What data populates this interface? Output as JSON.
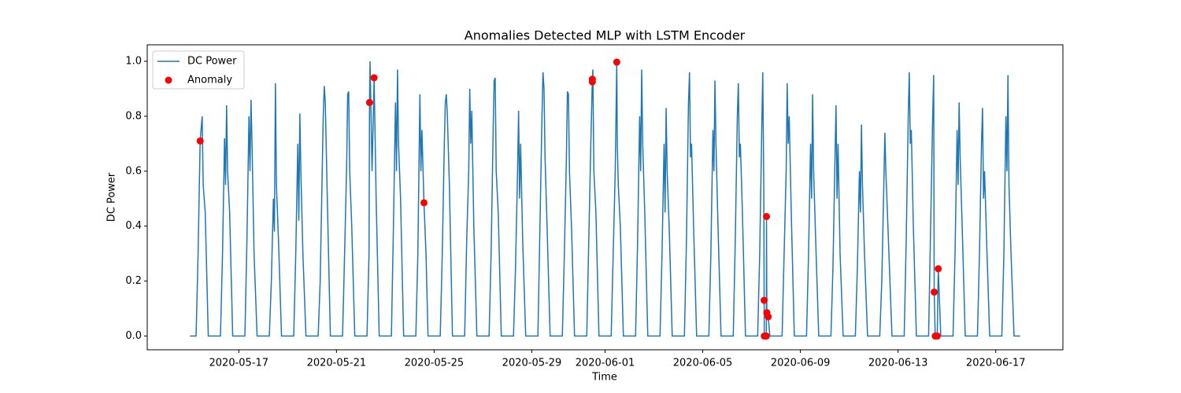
{
  "chart_data": {
    "type": "line",
    "title": "Anomalies Detected MLP with LSTM Encoder",
    "xlabel": "Time",
    "ylabel": "DC Power",
    "xlim": [
      "2020-05-13 06:00",
      "2020-06-19 18:00"
    ],
    "ylim": [
      -0.05,
      1.06
    ],
    "xticks": [
      "2020-05-17",
      "2020-05-21",
      "2020-05-25",
      "2020-05-29",
      "2020-06-01",
      "2020-06-05",
      "2020-06-09",
      "2020-06-13",
      "2020-06-17"
    ],
    "yticks": [
      {
        "value": 0,
        "label": "0.0"
      },
      {
        "value": 0.2,
        "label": "0.2"
      },
      {
        "value": 0.4,
        "label": "0.4"
      },
      {
        "value": 0.6,
        "label": "0.6"
      },
      {
        "value": 0.8,
        "label": "0.8"
      },
      {
        "value": 1,
        "label": "1.0"
      }
    ],
    "legend": "upper left",
    "series": [
      {
        "name": "DC Power",
        "type": "line",
        "color": "#1f77b4",
        "x": [
          "2020-05-15 00:00",
          "2020-05-15 06:00",
          "2020-05-15 08:00",
          "2020-05-15 10:00",
          "2020-05-15 12:00",
          "2020-05-15 13:00",
          "2020-05-15 15:00",
          "2020-05-15 18:00",
          "2020-05-16 06:00",
          "2020-05-16 08:00",
          "2020-05-16 10:00",
          "2020-05-16 11:00",
          "2020-05-16 12:00",
          "2020-05-16 13:00",
          "2020-05-16 15:00",
          "2020-05-16 18:00",
          "2020-05-17 06:00",
          "2020-05-17 08:00",
          "2020-05-17 10:00",
          "2020-05-17 11:00",
          "2020-05-17 12:00",
          "2020-05-17 13:00",
          "2020-05-17 15:00",
          "2020-05-17 18:00",
          "2020-05-18 06:00",
          "2020-05-18 08:00",
          "2020-05-18 10:00",
          "2020-05-18 11:00",
          "2020-05-18 12:00",
          "2020-05-18 13:00",
          "2020-05-18 15:00",
          "2020-05-18 18:00",
          "2020-05-19 06:00",
          "2020-05-19 08:00",
          "2020-05-19 10:00",
          "2020-05-19 11:00",
          "2020-05-19 12:00",
          "2020-05-19 13:00",
          "2020-05-19 15:00",
          "2020-05-19 18:00",
          "2020-05-20 06:00",
          "2020-05-20 08:00",
          "2020-05-20 10:00",
          "2020-05-20 11:00",
          "2020-05-20 12:00",
          "2020-05-20 13:00",
          "2020-05-20 15:00",
          "2020-05-20 18:00",
          "2020-05-21 06:00",
          "2020-05-21 08:00",
          "2020-05-21 10:00",
          "2020-05-21 11:00",
          "2020-05-21 12:00",
          "2020-05-21 13:00",
          "2020-05-21 15:00",
          "2020-05-21 18:00",
          "2020-05-22 06:00",
          "2020-05-22 08:00",
          "2020-05-22 08:30",
          "2020-05-22 09:00",
          "2020-05-22 11:00",
          "2020-05-22 13:00",
          "2020-05-22 15:00",
          "2020-05-22 18:00",
          "2020-05-23 06:00",
          "2020-05-23 08:00",
          "2020-05-23 10:00",
          "2020-05-23 11:00",
          "2020-05-23 12:00",
          "2020-05-23 13:00",
          "2020-05-23 15:00",
          "2020-05-23 18:00",
          "2020-05-24 06:00",
          "2020-05-24 08:00",
          "2020-05-24 10:00",
          "2020-05-24 11:00",
          "2020-05-24 12:00",
          "2020-05-24 14:00",
          "2020-05-24 16:00",
          "2020-05-24 18:00",
          "2020-05-25 06:00",
          "2020-05-25 08:00",
          "2020-05-25 10:00",
          "2020-05-25 11:00",
          "2020-05-25 12:00",
          "2020-05-25 13:00",
          "2020-05-25 15:00",
          "2020-05-25 18:00",
          "2020-05-26 06:00",
          "2020-05-26 08:00",
          "2020-05-26 10:00",
          "2020-05-26 11:00",
          "2020-05-26 12:00",
          "2020-05-26 13:00",
          "2020-05-26 15:00",
          "2020-05-26 18:00",
          "2020-05-27 06:00",
          "2020-05-27 08:00",
          "2020-05-27 10:00",
          "2020-05-27 11:00",
          "2020-05-27 12:00",
          "2020-05-27 13:00",
          "2020-05-27 15:00",
          "2020-05-27 18:00",
          "2020-05-28 06:00",
          "2020-05-28 08:00",
          "2020-05-28 10:00",
          "2020-05-28 11:00",
          "2020-05-28 12:00",
          "2020-05-28 13:00",
          "2020-05-28 15:00",
          "2020-05-28 18:00",
          "2020-05-29 06:00",
          "2020-05-29 08:00",
          "2020-05-29 10:00",
          "2020-05-29 11:00",
          "2020-05-29 12:00",
          "2020-05-29 13:00",
          "2020-05-29 15:00",
          "2020-05-29 18:00",
          "2020-05-30 06:00",
          "2020-05-30 08:00",
          "2020-05-30 10:00",
          "2020-05-30 11:00",
          "2020-05-30 12:00",
          "2020-05-30 13:00",
          "2020-05-30 15:00",
          "2020-05-30 18:00",
          "2020-05-31 06:00",
          "2020-05-31 08:00",
          "2020-05-31 10:00",
          "2020-05-31 11:30",
          "2020-05-31 12:00",
          "2020-05-31 13:00",
          "2020-05-31 15:00",
          "2020-05-31 18:00",
          "2020-06-01 06:00",
          "2020-06-01 08:00",
          "2020-06-01 10:00",
          "2020-06-01 11:30",
          "2020-06-01 12:00",
          "2020-06-01 13:00",
          "2020-06-01 15:00",
          "2020-06-01 18:00",
          "2020-06-02 06:00",
          "2020-06-02 08:00",
          "2020-06-02 10:00",
          "2020-06-02 11:00",
          "2020-06-02 12:00",
          "2020-06-02 13:00",
          "2020-06-02 15:00",
          "2020-06-02 18:00",
          "2020-06-03 06:00",
          "2020-06-03 08:00",
          "2020-06-03 10:00",
          "2020-06-03 11:00",
          "2020-06-03 12:00",
          "2020-06-03 13:00",
          "2020-06-03 15:00",
          "2020-06-03 18:00",
          "2020-06-04 06:00",
          "2020-06-04 08:00",
          "2020-06-04 10:00",
          "2020-06-04 11:00",
          "2020-06-04 12:00",
          "2020-06-04 13:00",
          "2020-06-04 15:00",
          "2020-06-04 18:00",
          "2020-06-05 06:00",
          "2020-06-05 08:00",
          "2020-06-05 10:00",
          "2020-06-05 11:00",
          "2020-06-05 12:00",
          "2020-06-05 13:00",
          "2020-06-05 15:00",
          "2020-06-05 18:00",
          "2020-06-06 06:00",
          "2020-06-06 08:00",
          "2020-06-06 10:00",
          "2020-06-06 11:00",
          "2020-06-06 12:00",
          "2020-06-06 13:00",
          "2020-06-06 15:00",
          "2020-06-06 18:00",
          "2020-06-07 06:00",
          "2020-06-07 08:00",
          "2020-06-07 10:00",
          "2020-06-07 11:00",
          "2020-06-07 12:00",
          "2020-06-07 12:20",
          "2020-06-07 12:30",
          "2020-06-07 14:30",
          "2020-06-07 14:40",
          "2020-06-07 15:00",
          "2020-06-07 16:20",
          "2020-06-07 18:00",
          "2020-06-08 06:00",
          "2020-06-08 08:00",
          "2020-06-08 10:00",
          "2020-06-08 11:00",
          "2020-06-08 12:00",
          "2020-06-08 13:00",
          "2020-06-08 15:00",
          "2020-06-08 18:00",
          "2020-06-09 06:00",
          "2020-06-09 08:00",
          "2020-06-09 10:00",
          "2020-06-09 11:00",
          "2020-06-09 12:00",
          "2020-06-09 13:00",
          "2020-06-09 15:00",
          "2020-06-09 18:00",
          "2020-06-10 06:00",
          "2020-06-10 08:00",
          "2020-06-10 10:00",
          "2020-06-10 11:00",
          "2020-06-10 12:00",
          "2020-06-10 13:00",
          "2020-06-10 15:00",
          "2020-06-10 18:00",
          "2020-06-11 06:00",
          "2020-06-11 08:00",
          "2020-06-11 10:00",
          "2020-06-11 11:00",
          "2020-06-11 12:00",
          "2020-06-11 13:00",
          "2020-06-11 15:00",
          "2020-06-11 18:00",
          "2020-06-12 06:00",
          "2020-06-12 08:00",
          "2020-06-12 10:00",
          "2020-06-12 11:00",
          "2020-06-12 12:00",
          "2020-06-12 13:00",
          "2020-06-12 15:00",
          "2020-06-12 18:00",
          "2020-06-13 06:00",
          "2020-06-13 08:00",
          "2020-06-13 10:00",
          "2020-06-13 11:00",
          "2020-06-13 12:00",
          "2020-06-13 13:00",
          "2020-06-13 15:00",
          "2020-06-13 18:00",
          "2020-06-14 06:00",
          "2020-06-14 08:00",
          "2020-06-14 10:00",
          "2020-06-14 11:00",
          "2020-06-14 11:30",
          "2020-06-14 12:30",
          "2020-06-14 14:30",
          "2020-06-14 15:30",
          "2020-06-14 18:00",
          "2020-06-15 06:00",
          "2020-06-15 08:00",
          "2020-06-15 10:00",
          "2020-06-15 11:00",
          "2020-06-15 12:00",
          "2020-06-15 13:00",
          "2020-06-15 15:00",
          "2020-06-15 18:00",
          "2020-06-16 06:00",
          "2020-06-16 08:00",
          "2020-06-16 10:00",
          "2020-06-16 11:00",
          "2020-06-16 12:00",
          "2020-06-16 13:00",
          "2020-06-16 15:00",
          "2020-06-16 18:00",
          "2020-06-17 06:00",
          "2020-06-17 08:00",
          "2020-06-17 10:00",
          "2020-06-17 11:00",
          "2020-06-17 12:00",
          "2020-06-17 13:00",
          "2020-06-17 15:00",
          "2020-06-17 18:00",
          "2020-06-18 00:00"
        ],
        "values": [
          0,
          0,
          0.3,
          0.71,
          0.8,
          0.55,
          0.45,
          0,
          0,
          0.3,
          0.72,
          0.55,
          0.84,
          0.6,
          0.45,
          0,
          0,
          0.35,
          0.8,
          0.6,
          0.86,
          0.7,
          0.3,
          0,
          0,
          0.2,
          0.5,
          0.38,
          0.92,
          0.55,
          0.35,
          0,
          0,
          0.3,
          0.7,
          0.42,
          0.81,
          0.6,
          0.3,
          0,
          0,
          0.2,
          0.6,
          0.8,
          0.91,
          0.85,
          0.5,
          0,
          0,
          0.3,
          0.62,
          0.88,
          0.89,
          0.6,
          0.4,
          0,
          0,
          0.3,
          0.85,
          1.0,
          0.6,
          0.94,
          0.5,
          0,
          0,
          0.4,
          0.85,
          0.6,
          0.97,
          0.7,
          0.5,
          0,
          0,
          0.3,
          0.88,
          0.6,
          0.75,
          0.485,
          0.3,
          0,
          0,
          0.3,
          0.7,
          0.85,
          0.88,
          0.8,
          0.55,
          0,
          0,
          0.35,
          0.6,
          0.9,
          0.7,
          0.82,
          0.4,
          0,
          0,
          0.3,
          0.75,
          0.93,
          0.94,
          0.6,
          0.45,
          0,
          0,
          0.25,
          0.6,
          0.82,
          0.5,
          0.7,
          0.35,
          0,
          0,
          0.4,
          0.8,
          0.96,
          0.9,
          0.65,
          0.4,
          0,
          0,
          0.3,
          0.65,
          0.89,
          0.88,
          0.6,
          0.4,
          0,
          0,
          0.35,
          0.7,
          0.935,
          0.97,
          0.6,
          0.45,
          0,
          0,
          0.3,
          0.6,
          0.997,
          0.7,
          0.55,
          0.4,
          0,
          0,
          0.35,
          0.8,
          0.6,
          0.97,
          0.7,
          0.45,
          0,
          0,
          0.3,
          0.7,
          0.45,
          0.83,
          0.6,
          0.4,
          0,
          0,
          0.35,
          0.85,
          0.96,
          0.65,
          0.7,
          0.4,
          0,
          0,
          0.3,
          0.75,
          0.6,
          0.93,
          0.7,
          0.4,
          0,
          0,
          0.35,
          0.8,
          0.92,
          0.65,
          0.7,
          0.45,
          0,
          0,
          0.3,
          0.75,
          0.96,
          0.55,
          0.13,
          0,
          0,
          0.435,
          0.085,
          0.07,
          0,
          0,
          0.3,
          0.6,
          0.92,
          0.7,
          0.8,
          0.45,
          0,
          0,
          0.3,
          0.7,
          0.5,
          0.88,
          0.6,
          0.35,
          0,
          0,
          0.25,
          0.65,
          0.84,
          0.5,
          0.7,
          0.3,
          0,
          0,
          0.25,
          0.6,
          0.45,
          0.77,
          0.55,
          0.3,
          0,
          0,
          0.2,
          0.55,
          0.74,
          0.6,
          0.5,
          0.3,
          0,
          0,
          0.35,
          0.8,
          0.96,
          0.7,
          0.75,
          0.4,
          0,
          0,
          0.4,
          0.8,
          0.95,
          0.16,
          0,
          0,
          0.245,
          0,
          0,
          0.3,
          0.75,
          0.55,
          0.85,
          0.65,
          0.4,
          0,
          0,
          0.3,
          0.7,
          0.83,
          0.5,
          0.6,
          0.35,
          0,
          0,
          0.3,
          0.8,
          0.6,
          0.95,
          0.55,
          0.3,
          0,
          0
        ]
      },
      {
        "name": "Anomaly",
        "type": "scatter",
        "color": "red",
        "x": [
          "2020-05-15 10:00",
          "2020-05-22 08:30",
          "2020-05-22 13:00",
          "2020-05-24 14:00",
          "2020-05-31 11:30",
          "2020-05-31 11:30",
          "2020-06-01 11:30",
          "2020-06-07 12:20",
          "2020-06-07 12:30",
          "2020-06-07 14:30",
          "2020-06-07 14:40",
          "2020-06-07 15:00",
          "2020-06-07 16:20",
          "2020-06-14 11:30",
          "2020-06-14 12:30",
          "2020-06-14 14:30",
          "2020-06-14 15:30"
        ],
        "values": [
          0.71,
          0.85,
          0.94,
          0.485,
          0.935,
          0.925,
          0.997,
          0.13,
          0,
          0,
          0.435,
          0.085,
          0.07,
          0.16,
          0,
          0,
          0.245
        ]
      }
    ]
  }
}
